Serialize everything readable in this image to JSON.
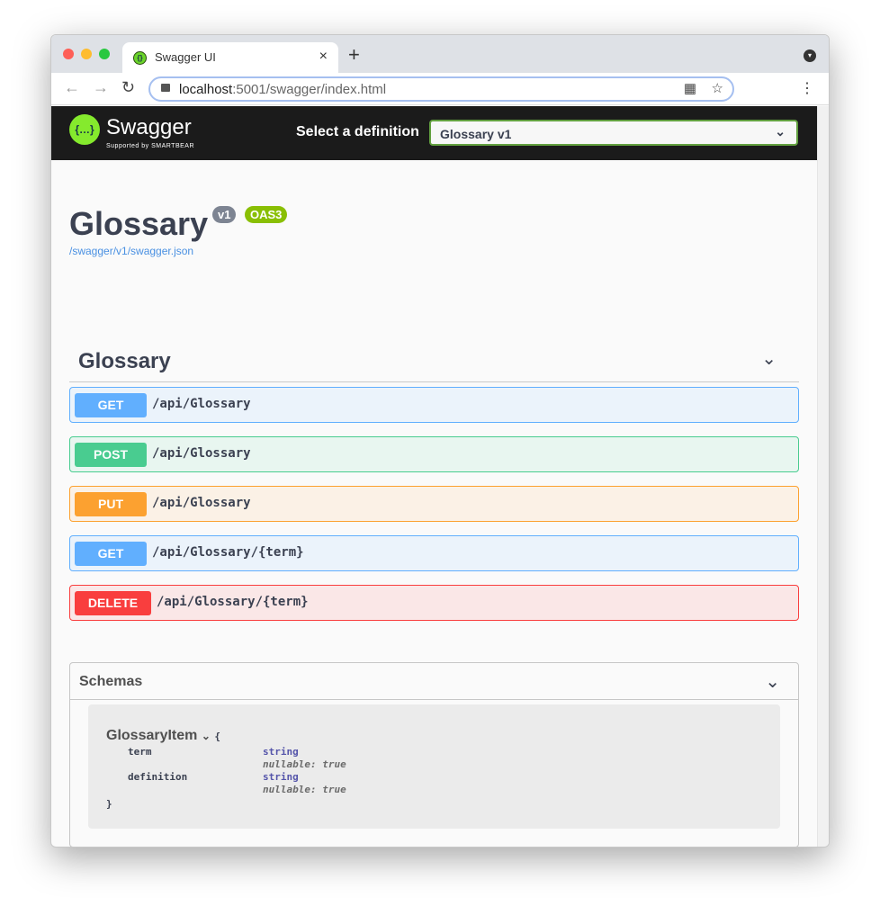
{
  "browser": {
    "tab_title": "Swagger UI",
    "url_host": "localhost",
    "url_rest": ":5001/swagger/index.html"
  },
  "header": {
    "brand": "Swagger",
    "supported_by": "Supported by SMARTBEAR",
    "select_label": "Select a definition",
    "selected_definition": "Glossary v1"
  },
  "info": {
    "title": "Glossary",
    "version_badge": "v1",
    "oas_badge": "OAS3",
    "spec_link": "/swagger/v1/swagger.json"
  },
  "tag": {
    "name": "Glossary"
  },
  "operations": [
    {
      "method": "GET",
      "path": "/api/Glossary",
      "color": "#61affe"
    },
    {
      "method": "POST",
      "path": "/api/Glossary",
      "color": "#49cc90"
    },
    {
      "method": "PUT",
      "path": "/api/Glossary",
      "color": "#fca130"
    },
    {
      "method": "GET",
      "path": "/api/Glossary/{term}",
      "color": "#61affe"
    },
    {
      "method": "DELETE",
      "path": "/api/Glossary/{term}",
      "color": "#f93e3e"
    }
  ],
  "schemas": {
    "title": "Schemas",
    "model": {
      "name": "GlossaryItem",
      "open_brace": "{",
      "close_brace": "}",
      "properties": [
        {
          "name": "term",
          "type": "string",
          "extra": "nullable: true"
        },
        {
          "name": "definition",
          "type": "string",
          "extra": "nullable: true"
        }
      ]
    }
  }
}
